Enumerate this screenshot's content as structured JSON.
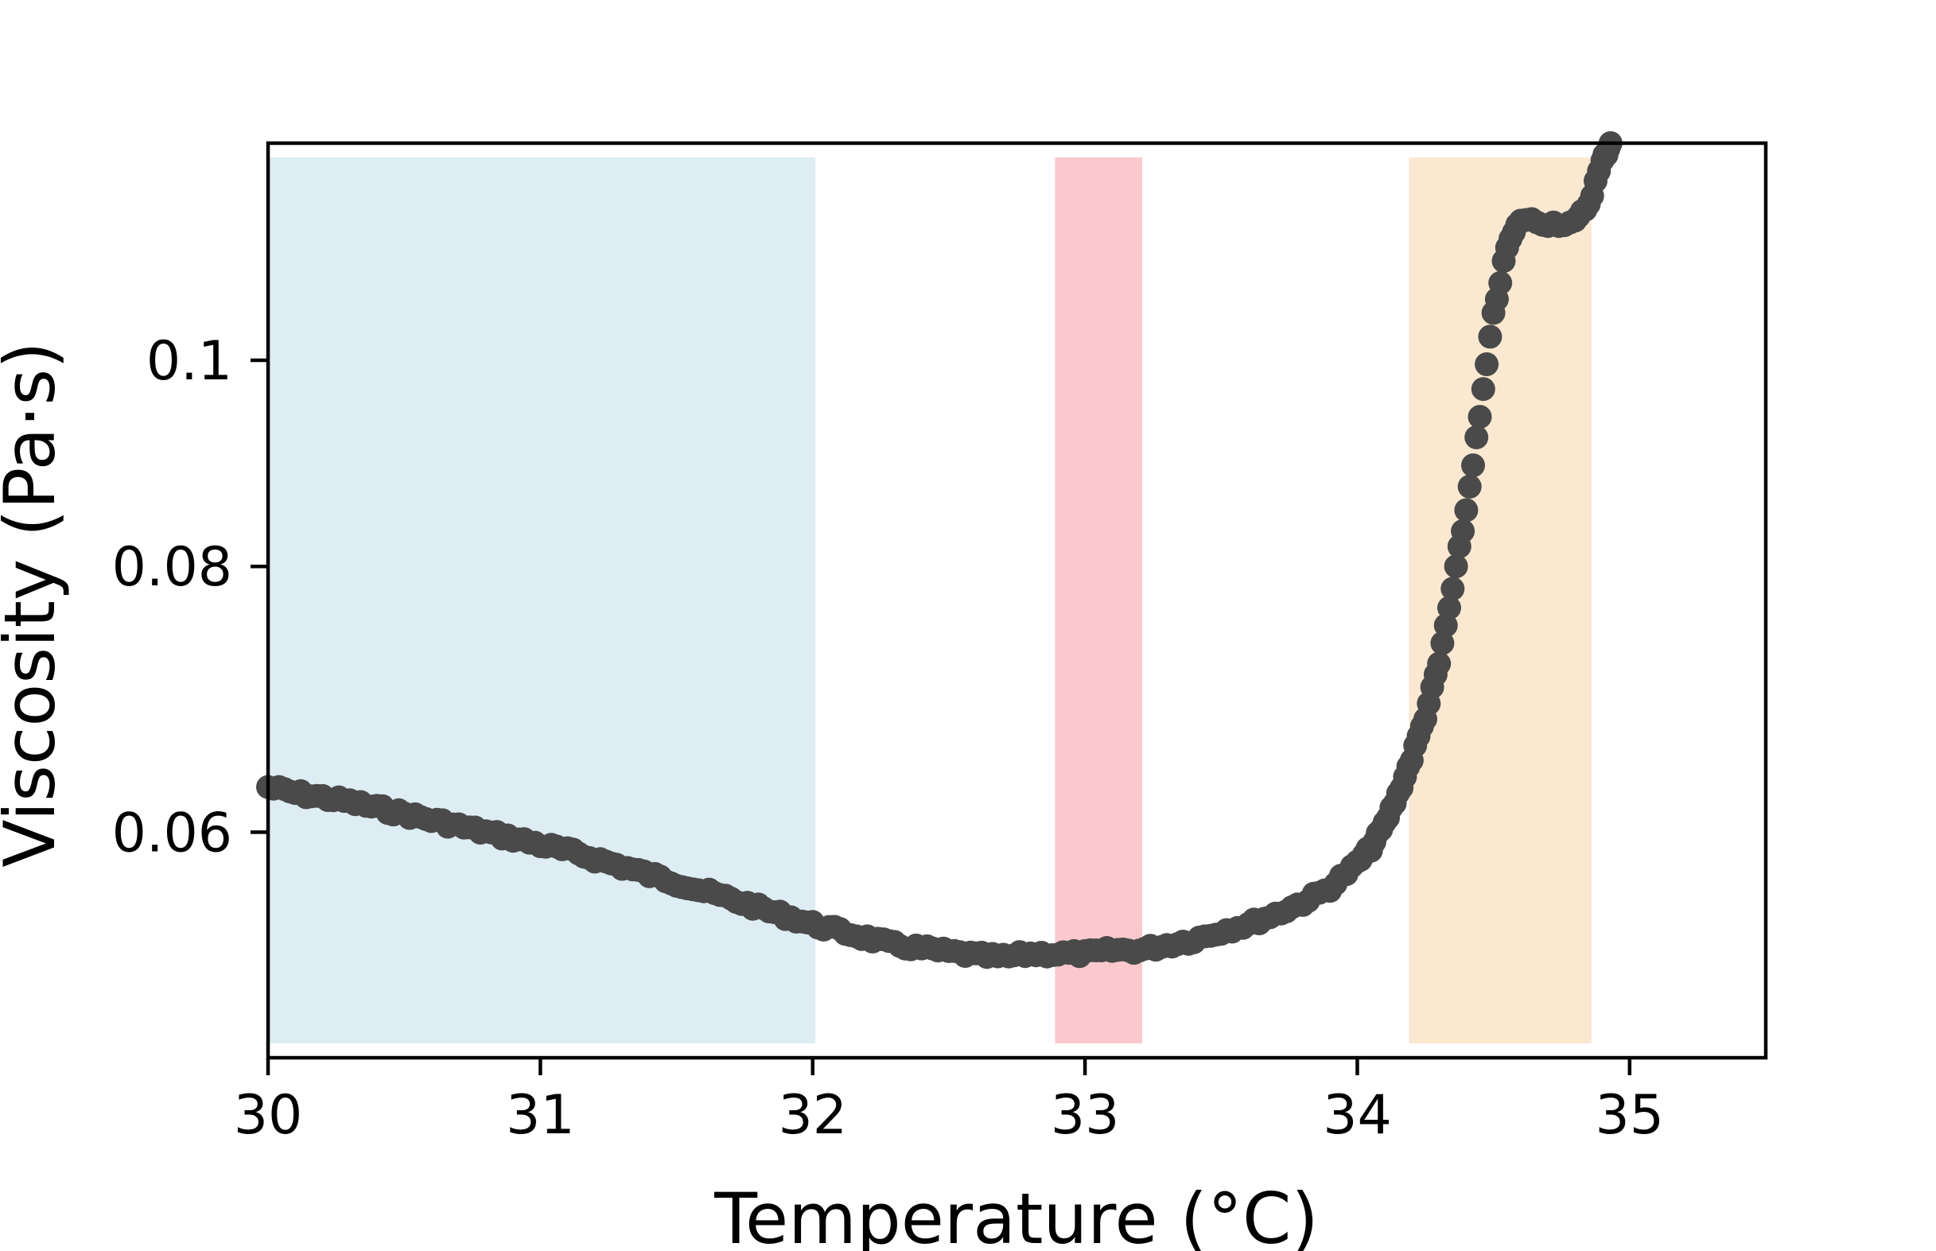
{
  "chart_data": {
    "type": "scatter",
    "title": "",
    "xlabel": "Temperature (°C)",
    "ylabel": "Viscosity (Pa·s)",
    "xlim": [
      30,
      35.5
    ],
    "ylim": [
      0.047,
      0.1265
    ],
    "y_scale": "log",
    "grid": false,
    "legend": "none",
    "xticks": [
      30,
      31,
      32,
      33,
      34,
      35
    ],
    "xtick_labels": [
      "30",
      "31",
      "32",
      "33",
      "34",
      "35"
    ],
    "yticks": [
      0.06,
      0.08,
      0.1
    ],
    "ytick_labels": [
      "0.06",
      "0.08",
      "0.1"
    ],
    "marker_color": "#4a4a4a",
    "shaded_regions": [
      {
        "x0": 30.0,
        "x1": 32.01,
        "color": "#ddedf3"
      },
      {
        "x0": 32.89,
        "x1": 33.21,
        "color": "#f9c9cd"
      },
      {
        "x0": 34.19,
        "x1": 34.86,
        "color": "#fbe8d1"
      }
    ],
    "series": [
      {
        "points": [
          [
            30.0,
            0.063
          ],
          [
            30.1,
            0.0626
          ],
          [
            30.2,
            0.0623
          ],
          [
            30.3,
            0.062
          ],
          [
            30.4,
            0.0616
          ],
          [
            30.5,
            0.0612
          ],
          [
            30.6,
            0.0608
          ],
          [
            30.7,
            0.0604
          ],
          [
            30.8,
            0.06
          ],
          [
            30.9,
            0.0596
          ],
          [
            31.0,
            0.0592
          ],
          [
            31.1,
            0.0588
          ],
          [
            31.2,
            0.0583
          ],
          [
            31.3,
            0.0578
          ],
          [
            31.4,
            0.0573
          ],
          [
            31.5,
            0.0568
          ],
          [
            31.6,
            0.0563
          ],
          [
            31.7,
            0.0558
          ],
          [
            31.8,
            0.0553
          ],
          [
            31.9,
            0.0548
          ],
          [
            32.0,
            0.0543
          ],
          [
            32.1,
            0.0539
          ],
          [
            32.2,
            0.0535
          ],
          [
            32.3,
            0.0531
          ],
          [
            32.4,
            0.0529
          ],
          [
            32.5,
            0.0527
          ],
          [
            32.6,
            0.0525
          ],
          [
            32.7,
            0.0524
          ],
          [
            32.8,
            0.0526
          ],
          [
            32.9,
            0.0526
          ],
          [
            33.0,
            0.0526
          ],
          [
            33.1,
            0.0528
          ],
          [
            33.2,
            0.0528
          ],
          [
            33.3,
            0.0531
          ],
          [
            33.4,
            0.0534
          ],
          [
            33.5,
            0.0539
          ],
          [
            33.6,
            0.0543
          ],
          [
            33.7,
            0.0549
          ],
          [
            33.8,
            0.0556
          ],
          [
            33.9,
            0.0565
          ],
          [
            34.0,
            0.058
          ],
          [
            34.05,
            0.059
          ],
          [
            34.1,
            0.0605
          ],
          [
            34.15,
            0.0625
          ],
          [
            34.2,
            0.065
          ],
          [
            34.25,
            0.068
          ],
          [
            34.3,
            0.072
          ],
          [
            34.35,
            0.078
          ],
          [
            34.4,
            0.085
          ],
          [
            34.45,
            0.094
          ],
          [
            34.5,
            0.105
          ],
          [
            34.55,
            0.113
          ],
          [
            34.6,
            0.1165
          ],
          [
            34.7,
            0.116
          ],
          [
            34.8,
            0.116
          ],
          [
            34.85,
            0.1185
          ],
          [
            34.9,
            0.124
          ],
          [
            34.93,
            0.1265
          ]
        ]
      }
    ]
  }
}
